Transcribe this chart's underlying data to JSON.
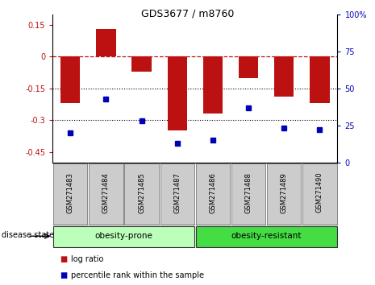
{
  "title": "GDS3677 / m8760",
  "samples": [
    "GSM271483",
    "GSM271484",
    "GSM271485",
    "GSM271487",
    "GSM271486",
    "GSM271488",
    "GSM271489",
    "GSM271490"
  ],
  "log_ratio": [
    -0.22,
    0.13,
    -0.07,
    -0.35,
    -0.27,
    -0.1,
    -0.19,
    -0.22
  ],
  "percentile_rank": [
    20,
    43,
    28,
    13,
    15,
    37,
    23,
    22
  ],
  "group1_label": "obesity-prone",
  "group1_count": 4,
  "group2_label": "obesity-resistant",
  "group2_count": 4,
  "disease_state_label": "disease state",
  "bar_color": "#BB1111",
  "dot_color": "#0000BB",
  "group1_color": "#BBFFBB",
  "group2_color": "#44DD44",
  "sample_box_color": "#CCCCCC",
  "ylim_left": [
    -0.5,
    0.2
  ],
  "ylim_right": [
    0,
    100
  ],
  "left_yticks": [
    0.15,
    0.0,
    -0.15,
    -0.3,
    -0.45
  ],
  "right_yticks": [
    100,
    75,
    50,
    25,
    0
  ],
  "dotted_lines": [
    -0.15,
    -0.3
  ],
  "bar_width": 0.55,
  "legend_items": [
    {
      "label": "log ratio",
      "color": "#BB1111"
    },
    {
      "label": "percentile rank within the sample",
      "color": "#0000BB"
    }
  ]
}
